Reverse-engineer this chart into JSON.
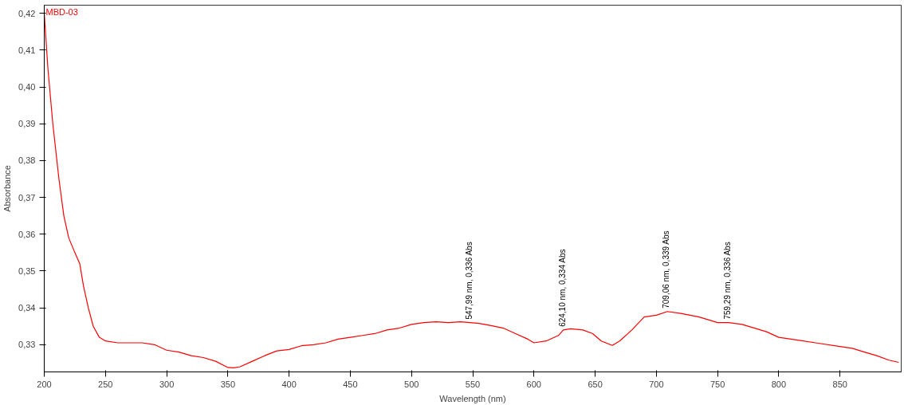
{
  "chart_data": {
    "type": "line",
    "xlabel": "Wavelength (nm)",
    "ylabel": "Absorbance",
    "xlim": [
      200,
      900
    ],
    "ylim": [
      0.3226,
      0.4222
    ],
    "xticks": [
      200,
      250,
      300,
      350,
      400,
      450,
      500,
      550,
      600,
      650,
      700,
      750,
      800,
      850
    ],
    "yticks": [
      {
        "value": 0.33,
        "label": "0,33"
      },
      {
        "value": 0.34,
        "label": "0,34"
      },
      {
        "value": 0.35,
        "label": "0,35"
      },
      {
        "value": 0.36,
        "label": "0,36"
      },
      {
        "value": 0.37,
        "label": "0,37"
      },
      {
        "value": 0.38,
        "label": "0,38"
      },
      {
        "value": 0.39,
        "label": "0,39"
      },
      {
        "value": 0.4,
        "label": "0,40"
      },
      {
        "value": 0.41,
        "label": "0,41"
      },
      {
        "value": 0.42,
        "label": "0,42"
      }
    ],
    "grid": false,
    "legend": false,
    "marker": "none",
    "line_style": "solid",
    "series": [
      {
        "name": "MBD-03",
        "color": "#ff0000",
        "x": [
          200,
          203,
          207,
          212,
          216,
          220,
          225,
          229,
          232,
          236,
          240,
          245,
          250,
          260,
          270,
          280,
          290,
          300,
          310,
          320,
          330,
          340,
          350,
          355,
          360,
          370,
          380,
          390,
          400,
          410,
          420,
          430,
          440,
          450,
          460,
          470,
          480,
          490,
          500,
          510,
          520,
          530,
          540,
          548,
          555,
          565,
          575,
          585,
          595,
          600,
          610,
          620,
          624,
          630,
          640,
          648,
          655,
          664,
          670,
          680,
          690,
          700,
          709,
          720,
          735,
          750,
          759,
          770,
          790,
          800,
          810,
          820,
          830,
          850,
          860,
          870,
          880,
          890,
          898
        ],
        "values": [
          0.42,
          0.405,
          0.39,
          0.375,
          0.365,
          0.359,
          0.355,
          0.352,
          0.346,
          0.34,
          0.335,
          0.332,
          0.331,
          0.3305,
          0.3305,
          0.3305,
          0.33,
          0.3285,
          0.328,
          0.327,
          0.3265,
          0.3255,
          0.3238,
          0.3237,
          0.324,
          0.3255,
          0.327,
          0.3283,
          0.3287,
          0.3297,
          0.33,
          0.3305,
          0.3315,
          0.332,
          0.3325,
          0.333,
          0.334,
          0.3345,
          0.3355,
          0.336,
          0.3362,
          0.336,
          0.3362,
          0.336,
          0.3358,
          0.3352,
          0.3345,
          0.333,
          0.3315,
          0.3305,
          0.331,
          0.3325,
          0.334,
          0.3343,
          0.334,
          0.333,
          0.331,
          0.3298,
          0.331,
          0.334,
          0.3375,
          0.338,
          0.339,
          0.3385,
          0.3375,
          0.336,
          0.336,
          0.3355,
          0.3335,
          0.332,
          0.3315,
          0.331,
          0.3305,
          0.3295,
          0.329,
          0.328,
          0.327,
          0.3258,
          0.3252
        ]
      }
    ],
    "annotations": [
      {
        "text": "547,99 nm, 0,336 Abs",
        "x": 547.99,
        "y": 0.336
      },
      {
        "text": "624,10 nm, 0,334 Abs",
        "x": 624.1,
        "y": 0.334
      },
      {
        "text": "709,06 nm, 0,339 Abs",
        "x": 709.06,
        "y": 0.339
      },
      {
        "text": "759,29 nm, 0,336 Abs",
        "x": 759.29,
        "y": 0.336
      }
    ]
  }
}
